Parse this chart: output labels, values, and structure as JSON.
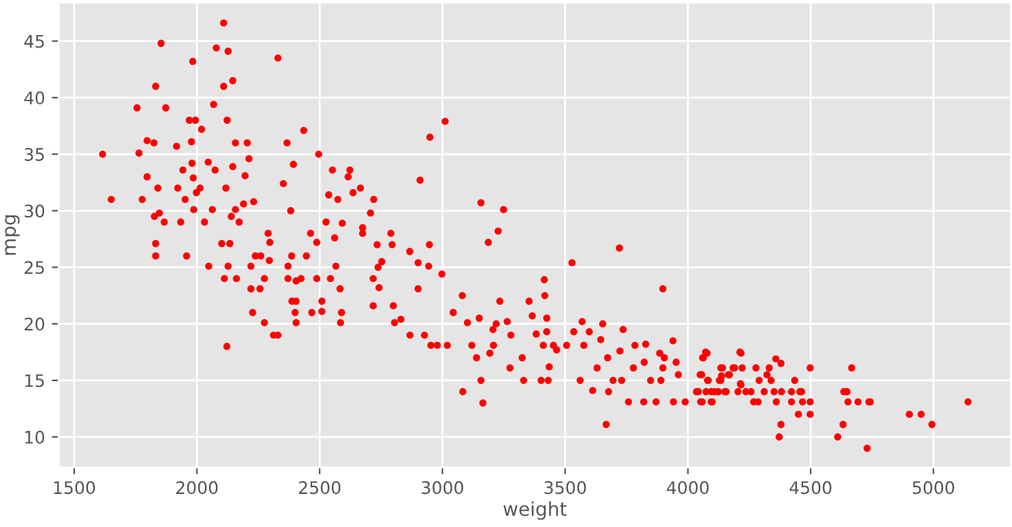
{
  "chart_data": {
    "type": "scatter",
    "xlabel": "weight",
    "ylabel": "mpg",
    "xlim": [
      1437,
      5316
    ],
    "ylim": [
      7.3,
      48.4
    ],
    "xticks": [
      1500,
      2000,
      2500,
      3000,
      3500,
      4000,
      4500,
      5000
    ],
    "yticks": [
      10,
      15,
      20,
      25,
      30,
      35,
      40,
      45
    ],
    "grid": true,
    "marker": "circle",
    "series": [
      {
        "color": "#ff0000",
        "x": [
          1616,
          1651,
          1756,
          1764,
          1777,
          1797,
          1797,
          1825,
          1832,
          1827,
          1832,
          1832,
          1841,
          1847,
          1854,
          1867,
          1873,
          1917,
          1922,
          1934,
          1943,
          1952,
          1958,
          1969,
          1978,
          1980,
          1983,
          1985,
          1987,
          1994,
          1998,
          2013,
          2019,
          2031,
          2046,
          2048,
          2063,
          2068,
          2074,
          2079,
          2109,
          2109,
          2101,
          2112,
          2118,
          2122,
          2127,
          2123,
          2127,
          2134,
          2140,
          2146,
          2146,
          2157,
          2157,
          2161,
          2172,
          2190,
          2196,
          2205,
          2212,
          2220,
          2220,
          2227,
          2231,
          2238,
          2257,
          2260,
          2275,
          2275,
          2290,
          2297,
          2295,
          2312,
          2330,
          2330,
          2352,
          2367,
          2371,
          2371,
          2382,
          2386,
          2387,
          2404,
          2400,
          2404,
          2393,
          2404,
          2424,
          2435,
          2446,
          2468,
          2463,
          2488,
          2488,
          2496,
          2509,
          2509,
          2526,
          2537,
          2544,
          2552,
          2561,
          2566,
          2574,
          2583,
          2589,
          2585,
          2592,
          2623,
          2616,
          2636,
          2666,
          2720,
          2707,
          2675,
          2675,
          2734,
          2790,
          2795,
          2753,
          2738,
          2718,
          2742,
          2718,
          2800,
          2805,
          2831,
          2867,
          2868,
          2901,
          2901,
          2944,
          2947,
          2949,
          2909,
          2927,
          2953,
          2979,
          2998,
          3011,
          3020,
          3044,
          3081,
          3102,
          3083,
          3150,
          3120,
          3139,
          3157,
          3165,
          3157,
          3187,
          3206,
          3227,
          3249,
          3234,
          3219,
          3264,
          3279,
          3208,
          3193,
          3275,
          3331,
          3325,
          3353,
          3366,
          3382,
          3402,
          3415,
          3417,
          3425,
          3425,
          3411,
          3452,
          3435,
          3431,
          3465,
          3506,
          3528,
          3535,
          3569,
          3561,
          3576,
          3598,
          3612,
          3630,
          3653,
          3645,
          3667,
          3677,
          3673,
          3695,
          3721,
          3723,
          3736,
          3730,
          3758,
          3784,
          3778,
          3822,
          3828,
          3820,
          3848,
          3870,
          3885,
          3898,
          3904,
          3898,
          3890,
          3939,
          3952,
          3941,
          3961,
          3989,
          4043,
          4056,
          4063,
          4078,
          4058,
          4083,
          4099,
          4108,
          4141,
          4134,
          4156,
          4169,
          4190,
          4216,
          4216,
          4035,
          4052,
          4050,
          4060,
          4072,
          4080,
          4074,
          4095,
          4095,
          4124,
          4128,
          4134,
          4137,
          4150,
          4165,
          4184,
          4204,
          4212,
          4214,
          4221,
          4236,
          4257,
          4268,
          4277,
          4290,
          4286,
          4311,
          4322,
          4331,
          4339,
          4351,
          4358,
          4360,
          4379,
          4381,
          4379,
          4372,
          4422,
          4422,
          4435,
          4450,
          4456,
          4463,
          4467,
          4498,
          4498,
          4498,
          4610,
          4632,
          4635,
          4648,
          4652,
          4667,
          4693,
          4730,
          4737,
          4743,
          4902,
          4950,
          4994,
          5141
        ],
        "values": [
          35.0,
          31.0,
          39.1,
          35.1,
          31.0,
          36.2,
          33.0,
          36.0,
          41.0,
          29.5,
          27.1,
          26.0,
          32.0,
          29.8,
          44.8,
          29.0,
          39.1,
          35.7,
          32.0,
          29.0,
          33.6,
          31.0,
          26.0,
          38.0,
          36.1,
          34.2,
          43.2,
          32.9,
          30.1,
          38.0,
          31.6,
          32.0,
          37.2,
          29.0,
          34.3,
          25.1,
          30.1,
          39.4,
          33.6,
          44.4,
          46.6,
          41.0,
          27.1,
          24.0,
          32.0,
          18.0,
          44.1,
          38.0,
          25.1,
          27.1,
          29.5,
          41.5,
          33.9,
          36.0,
          30.1,
          24.0,
          29.0,
          30.6,
          33.1,
          36.0,
          34.6,
          25.1,
          23.1,
          21.0,
          30.8,
          26.0,
          23.1,
          26.0,
          20.1,
          24.0,
          28.0,
          27.2,
          25.6,
          19.0,
          19.0,
          43.5,
          32.4,
          36.0,
          25.1,
          24.0,
          30.0,
          26.0,
          22.0,
          22.0,
          21.0,
          20.1,
          34.1,
          23.8,
          24.0,
          37.1,
          26.0,
          21.0,
          28.0,
          24.0,
          27.2,
          35.0,
          22.0,
          21.1,
          29.0,
          31.4,
          24.0,
          33.6,
          27.6,
          25.1,
          31.0,
          23.1,
          21.0,
          20.1,
          28.9,
          33.6,
          33.0,
          31.6,
          32.0,
          31.0,
          29.8,
          28.5,
          28.0,
          27.0,
          28.0,
          27.0,
          25.5,
          25.0,
          24.0,
          23.2,
          21.6,
          21.6,
          20.1,
          20.4,
          26.4,
          19.0,
          25.4,
          23.1,
          25.1,
          27.0,
          36.5,
          32.7,
          19.0,
          18.1,
          18.1,
          24.4,
          37.9,
          18.1,
          21.0,
          22.5,
          20.1,
          14.0,
          20.5,
          18.1,
          17.0,
          15.0,
          13.0,
          30.7,
          27.2,
          19.5,
          28.2,
          30.1,
          22.0,
          20.0,
          20.2,
          19.0,
          18.1,
          17.4,
          16.1,
          15.0,
          17.0,
          22.0,
          20.7,
          19.1,
          15.0,
          23.9,
          22.5,
          20.5,
          19.3,
          18.1,
          18.1,
          16.2,
          15.0,
          17.7,
          18.1,
          25.4,
          19.3,
          20.2,
          15.0,
          18.1,
          19.3,
          14.1,
          16.1,
          20.0,
          18.6,
          11.1,
          14.0,
          17.0,
          15.0,
          26.7,
          17.6,
          19.5,
          15.0,
          13.1,
          18.1,
          16.1,
          16.6,
          18.2,
          13.1,
          15.0,
          13.1,
          17.4,
          23.1,
          17.0,
          16.1,
          15.0,
          18.5,
          16.6,
          13.1,
          15.5,
          13.1,
          14.0,
          15.5,
          17.0,
          17.4,
          13.1,
          15.0,
          13.1,
          14.0,
          16.1,
          15.0,
          14.0,
          15.5,
          16.1,
          17.4,
          14.6,
          14.0,
          13.1,
          15.5,
          17.0,
          17.5,
          15.0,
          14.0,
          14.0,
          13.1,
          14.0,
          15.0,
          16.1,
          15.4,
          14.0,
          15.5,
          16.1,
          14.0,
          17.5,
          14.7,
          16.1,
          14.0,
          14.0,
          13.1,
          16.1,
          15.0,
          13.1,
          14.0,
          15.5,
          16.1,
          15.0,
          14.0,
          16.9,
          13.1,
          16.5,
          14.0,
          11.1,
          10.0,
          14.0,
          13.1,
          15.0,
          12.0,
          14.0,
          14.0,
          13.1,
          16.1,
          13.1,
          12.0,
          10.0,
          11.1,
          14.0,
          14.0,
          13.1,
          16.1,
          13.1,
          9.0,
          13.1,
          13.1,
          12.0,
          12.0,
          11.1,
          13.1
        ]
      }
    ]
  }
}
